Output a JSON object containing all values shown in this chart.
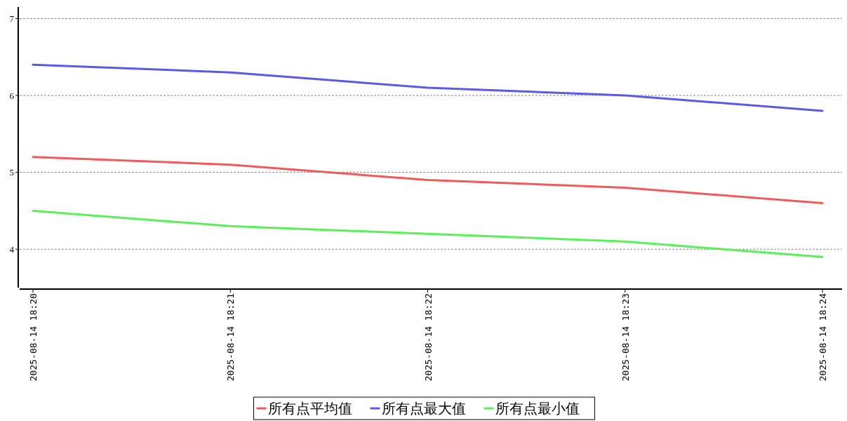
{
  "chart_data": {
    "type": "line",
    "categories": [
      "2025-08-14 18:20",
      "2025-08-14 18:21",
      "2025-08-14 18:22",
      "2025-08-14 18:23",
      "2025-08-14 18:24"
    ],
    "series": [
      {
        "name": "所有点平均值",
        "color": "#f05a5a",
        "values": [
          5.2,
          5.1,
          4.9,
          4.8,
          4.6
        ]
      },
      {
        "name": "所有点最大值",
        "color": "#5a5ae6",
        "values": [
          6.4,
          6.3,
          6.1,
          6.0,
          5.8
        ]
      },
      {
        "name": "所有点最小值",
        "color": "#5af05a",
        "values": [
          4.5,
          4.3,
          4.2,
          4.1,
          3.9
        ]
      }
    ],
    "ylim": [
      3.5,
      7.15
    ],
    "yticks": [
      4,
      5,
      6,
      7
    ],
    "grid": "y",
    "legend": "bottom",
    "marker": "none",
    "line_style": "solid"
  }
}
